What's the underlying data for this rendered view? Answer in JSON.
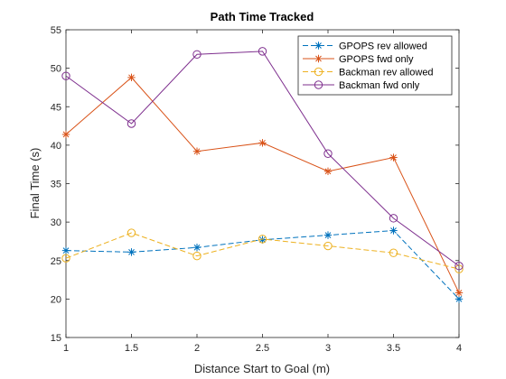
{
  "chart_data": {
    "type": "line",
    "title": "Path Time Tracked",
    "xlabel": "Distance Start to Goal (m)",
    "ylabel": "Final Time (s)",
    "xlim": [
      1,
      4
    ],
    "ylim": [
      15,
      55
    ],
    "xticks": [
      1,
      1.5,
      2,
      2.5,
      3,
      3.5,
      4
    ],
    "yticks": [
      15,
      20,
      25,
      30,
      35,
      40,
      45,
      50,
      55
    ],
    "xtick_labels": [
      "1",
      "1.5",
      "2",
      "2.5",
      "3",
      "3.5",
      "4"
    ],
    "ytick_labels": [
      "15",
      "20",
      "25",
      "30",
      "35",
      "40",
      "45",
      "50",
      "55"
    ],
    "grid": false,
    "legend_position": "top-right",
    "x": [
      1,
      1.5,
      2,
      2.5,
      3,
      3.5,
      4
    ],
    "series": [
      {
        "name": "GPOPS rev allowed",
        "values": [
          26.3,
          26.1,
          26.7,
          27.7,
          28.3,
          28.9,
          20.0
        ],
        "color": "#0072BD",
        "marker": "asterisk",
        "dash": "dashed"
      },
      {
        "name": "GPOPS fwd only",
        "values": [
          41.4,
          48.8,
          39.2,
          40.3,
          36.6,
          38.4,
          20.8
        ],
        "color": "#D95319",
        "marker": "asterisk",
        "dash": "solid"
      },
      {
        "name": "Backman rev allowed",
        "values": [
          25.3,
          28.6,
          25.6,
          27.8,
          26.9,
          26.0,
          23.9
        ],
        "color": "#EDB120",
        "marker": "circle",
        "dash": "dashed"
      },
      {
        "name": "Backman fwd only",
        "values": [
          49.0,
          42.8,
          51.8,
          52.2,
          38.9,
          30.5,
          24.3
        ],
        "color": "#7E2F8E",
        "marker": "circle",
        "dash": "solid"
      }
    ]
  }
}
